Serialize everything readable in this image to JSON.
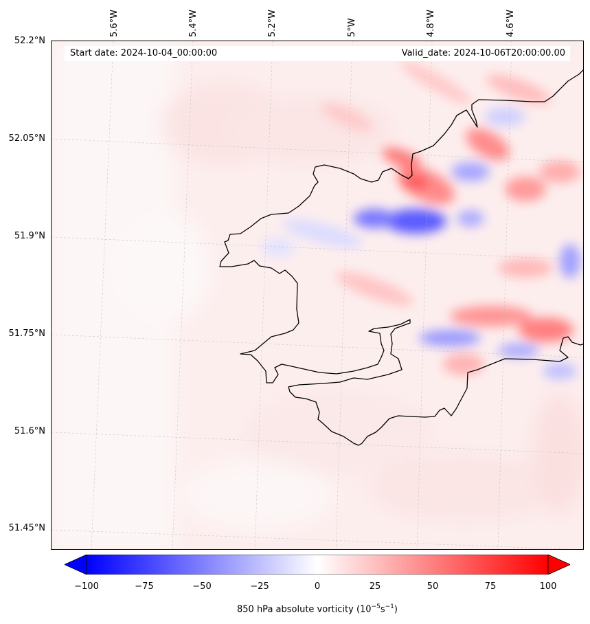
{
  "map": {
    "start_date": "Start date: 2024-10-04_00:00:00",
    "valid_date": "Valid_date: 2024-10-06T20:00:00.00",
    "lon_labels": [
      "5.6°W",
      "5.4°W",
      "5.2°W",
      "5°W",
      "4.8°W",
      "4.6°W"
    ],
    "lat_labels": [
      "52.2°N",
      "52.05°N",
      "51.9°N",
      "51.75°N",
      "51.6°N",
      "51.45°N"
    ],
    "gridlines": "dashed",
    "coastline_color": "#000000"
  },
  "colorbar": {
    "title": "850 hPa absolute vorticity (10",
    "title_exp1": "−5",
    "title_mid": "s",
    "title_exp2": "−1",
    "title_end": ")",
    "ticks": [
      "−100",
      "−75",
      "−50",
      "−25",
      "0",
      "25",
      "50",
      "75",
      "100"
    ],
    "min": -100,
    "max": 100,
    "colormap": "bwr",
    "extend": "both",
    "low_color": "#0000ff",
    "mid_color": "#ffffff",
    "high_color": "#ff0000"
  }
}
